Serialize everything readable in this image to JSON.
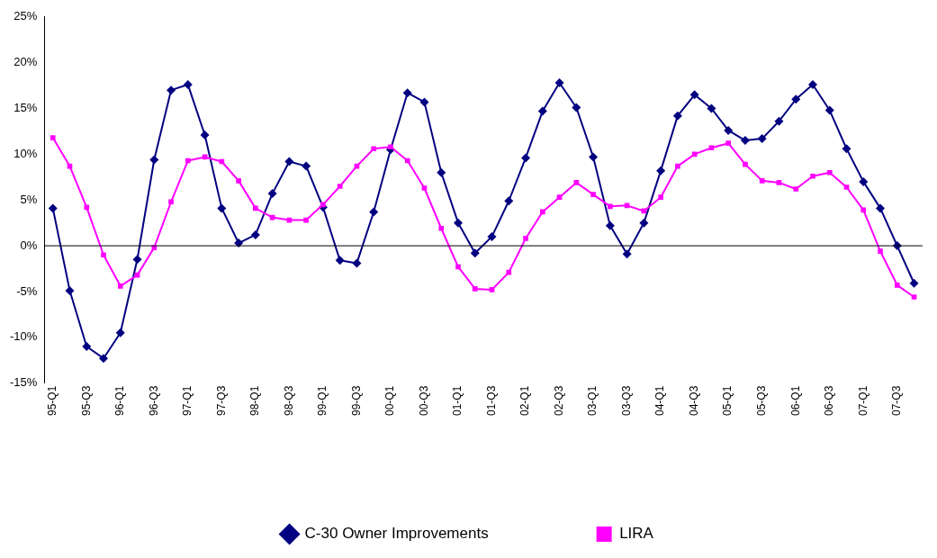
{
  "chart_data": {
    "type": "line",
    "categories": [
      "95-Q1",
      null,
      "95-Q3",
      null,
      "96-Q1",
      null,
      "96-Q3",
      null,
      "97-Q1",
      null,
      "97-Q3",
      null,
      "98-Q1",
      null,
      "98-Q3",
      null,
      "99-Q1",
      null,
      "99-Q3",
      null,
      "00-Q1",
      null,
      "00-Q3",
      null,
      "01-Q1",
      null,
      "01-Q3",
      null,
      "02-Q1",
      null,
      "02-Q3",
      null,
      "03-Q1",
      null,
      "03-Q3",
      null,
      "04-Q1",
      null,
      "04-Q3",
      null,
      "05-Q1",
      null,
      "05-Q3",
      null,
      "06-Q1",
      null,
      "06-Q3",
      null,
      "07-Q1",
      null,
      "07-Q3",
      null
    ],
    "series": [
      {
        "name": "C-30 Owner Improvements",
        "color": "#000080",
        "marker": "diamond",
        "values": [
          4.1,
          -4.9,
          -11.0,
          -12.3,
          -9.5,
          -1.5,
          9.4,
          17.0,
          17.6,
          12.1,
          4.1,
          0.3,
          1.2,
          5.7,
          9.2,
          8.7,
          4.2,
          -1.6,
          -1.9,
          3.7,
          10.5,
          16.7,
          15.7,
          8.0,
          2.5,
          -0.8,
          1.0,
          4.9,
          9.6,
          14.7,
          17.8,
          15.1,
          9.7,
          2.2,
          -0.9,
          2.5,
          8.2,
          14.2,
          16.5,
          15.0,
          12.6,
          11.5,
          11.7,
          13.6,
          16.0,
          17.6,
          14.8,
          10.6,
          7.0,
          4.1,
          0.0,
          -4.1
        ]
      },
      {
        "name": "LIRA",
        "color": "#ff00ff",
        "marker": "square",
        "values": [
          11.8,
          8.7,
          4.2,
          -1.0,
          -4.4,
          -3.2,
          -0.2,
          4.8,
          9.3,
          9.7,
          9.2,
          7.1,
          4.1,
          3.1,
          2.8,
          2.8,
          4.5,
          6.5,
          8.7,
          10.6,
          10.8,
          9.3,
          6.3,
          1.9,
          -2.3,
          -4.7,
          -4.8,
          -2.9,
          0.8,
          3.7,
          5.3,
          6.9,
          5.6,
          4.3,
          4.4,
          3.8,
          5.3,
          8.7,
          10.0,
          10.7,
          11.2,
          8.9,
          7.1,
          6.9,
          6.2,
          7.6,
          8.0,
          6.4,
          3.9,
          -0.6,
          -4.3,
          -5.6
        ]
      }
    ],
    "ylim": [
      -15,
      25
    ],
    "yticks": [
      {
        "value": -15,
        "label": "-15%"
      },
      {
        "value": -10,
        "label": "-10%"
      },
      {
        "value": -5,
        "label": "-5%"
      },
      {
        "value": 0,
        "label": "0%"
      },
      {
        "value": 5,
        "label": "5%"
      },
      {
        "value": 10,
        "label": "10%"
      },
      {
        "value": 15,
        "label": "15%"
      },
      {
        "value": 20,
        "label": "20%"
      },
      {
        "value": 25,
        "label": "25%"
      }
    ],
    "ref_lines": [
      {
        "axis": "y",
        "value": 0,
        "color": "#000000"
      }
    ],
    "grid": false,
    "legend": "bottom",
    "line_style": "solid"
  }
}
